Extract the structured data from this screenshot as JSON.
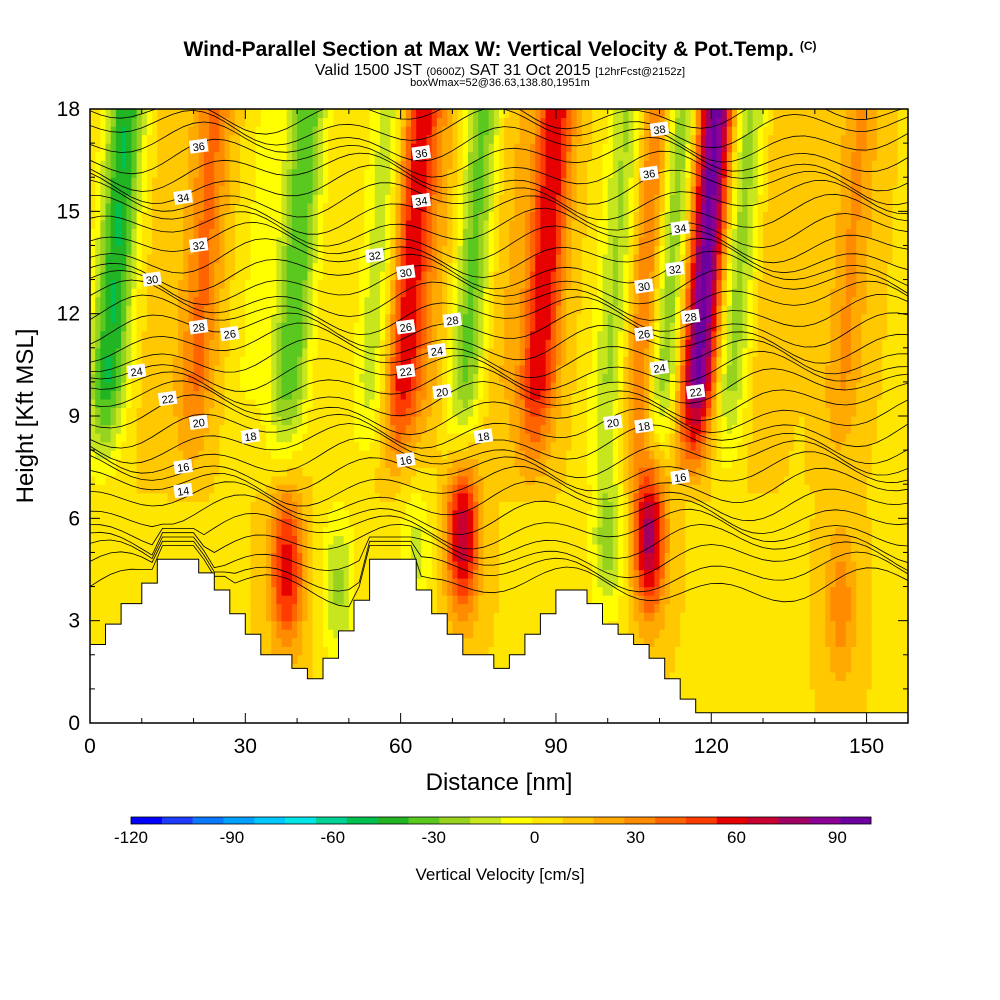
{
  "chart_data": {
    "type": "heatmap",
    "title": "Wind-Parallel Section at Max W: Vertical Velocity & Pot.Temp.",
    "title_mark": "(C)",
    "subtitle_main": "Valid 1500 JST",
    "subtitle_utc": "(0600Z)",
    "subtitle_date": "SAT 31 Oct 2015",
    "subtitle_fcst": "[12hrFcst@2152z]",
    "subtitle2": "boxWmax=52@36.63,138.80,1951m",
    "xlabel": "Distance [nm]",
    "ylabel": "Height [Kft MSL]",
    "xlim": [
      0,
      158
    ],
    "ylim": [
      0,
      18
    ],
    "x_ticks": [
      0,
      30,
      60,
      90,
      120,
      150
    ],
    "y_ticks": [
      0,
      3,
      6,
      9,
      12,
      15,
      18
    ],
    "colorbar": {
      "label": "Vertical Velocity [cm/s]",
      "ticks": [
        -120,
        -90,
        -60,
        -30,
        0,
        30,
        60,
        90
      ],
      "range": [
        -120,
        100
      ],
      "colors": [
        "#0000ff",
        "#1e3cff",
        "#0a78ff",
        "#00a0ff",
        "#00c8ff",
        "#00e6e6",
        "#00d296",
        "#00c050",
        "#22b422",
        "#5ac81e",
        "#96d21e",
        "#c8e61e",
        "#ffff00",
        "#ffe600",
        "#ffc800",
        "#ffaa00",
        "#ff8c00",
        "#ff6400",
        "#ff3c00",
        "#e60000",
        "#c80032",
        "#a00064",
        "#8c0096",
        "#6e00a0"
      ]
    },
    "updraft_bands": [
      {
        "x": 3,
        "w": -55
      },
      {
        "x": 12,
        "w": 5
      },
      {
        "x": 20,
        "w": 30
      },
      {
        "x": 30,
        "w": -10
      },
      {
        "x": 38,
        "w": -45
      },
      {
        "x": 47,
        "w": 0
      },
      {
        "x": 54,
        "w": -25
      },
      {
        "x": 60,
        "w": 55
      },
      {
        "x": 66,
        "w": 10
      },
      {
        "x": 72,
        "w": -40
      },
      {
        "x": 78,
        "w": 10
      },
      {
        "x": 86,
        "w": 55
      },
      {
        "x": 94,
        "w": 0
      },
      {
        "x": 100,
        "w": -30
      },
      {
        "x": 106,
        "w": 40
      },
      {
        "x": 110,
        "w": -45
      },
      {
        "x": 117,
        "w": 90
      },
      {
        "x": 123,
        "w": -35
      },
      {
        "x": 130,
        "w": 10
      },
      {
        "x": 145,
        "w": 20
      }
    ],
    "low_level_cells": [
      {
        "x": 38,
        "y": 4.5,
        "w": 55
      },
      {
        "x": 72,
        "y": 5.5,
        "w": 65
      },
      {
        "x": 108,
        "y": 5.5,
        "w": 70
      },
      {
        "x": 48,
        "y": 4.0,
        "w": -30
      },
      {
        "x": 63,
        "y": 5.0,
        "w": -20
      },
      {
        "x": 100,
        "y": 5.5,
        "w": -35
      },
      {
        "x": 145,
        "y": 3.5,
        "w": 25
      }
    ],
    "terrain": [
      [
        0,
        2.3
      ],
      [
        3,
        2.3
      ],
      [
        3,
        2.9
      ],
      [
        6,
        2.9
      ],
      [
        6,
        3.5
      ],
      [
        10,
        3.5
      ],
      [
        10,
        4.1
      ],
      [
        13,
        4.1
      ],
      [
        13,
        4.8
      ],
      [
        21,
        4.8
      ],
      [
        21,
        4.4
      ],
      [
        24,
        4.4
      ],
      [
        24,
        3.9
      ],
      [
        27,
        3.9
      ],
      [
        27,
        3.2
      ],
      [
        30,
        3.2
      ],
      [
        30,
        2.6
      ],
      [
        33,
        2.6
      ],
      [
        33,
        2.0
      ],
      [
        39,
        2.0
      ],
      [
        39,
        1.6
      ],
      [
        42,
        1.6
      ],
      [
        42,
        1.3
      ],
      [
        45,
        1.3
      ],
      [
        45,
        1.9
      ],
      [
        48,
        1.9
      ],
      [
        48,
        2.7
      ],
      [
        51,
        2.7
      ],
      [
        51,
        3.6
      ],
      [
        54,
        3.6
      ],
      [
        54,
        4.8
      ],
      [
        63,
        4.8
      ],
      [
        63,
        3.9
      ],
      [
        66,
        3.9
      ],
      [
        66,
        3.2
      ],
      [
        69,
        3.2
      ],
      [
        69,
        2.6
      ],
      [
        72,
        2.6
      ],
      [
        72,
        2.0
      ],
      [
        78,
        2.0
      ],
      [
        78,
        1.6
      ],
      [
        81,
        1.6
      ],
      [
        81,
        2.0
      ],
      [
        84,
        2.0
      ],
      [
        84,
        2.6
      ],
      [
        87,
        2.6
      ],
      [
        87,
        3.2
      ],
      [
        90,
        3.2
      ],
      [
        90,
        3.9
      ],
      [
        96,
        3.9
      ],
      [
        96,
        3.5
      ],
      [
        99,
        3.5
      ],
      [
        99,
        2.9
      ],
      [
        102,
        2.9
      ],
      [
        102,
        2.6
      ],
      [
        105,
        2.6
      ],
      [
        105,
        2.3
      ],
      [
        108,
        2.3
      ],
      [
        108,
        1.9
      ],
      [
        111,
        1.9
      ],
      [
        111,
        1.3
      ],
      [
        114,
        1.3
      ],
      [
        114,
        0.7
      ],
      [
        117,
        0.7
      ],
      [
        117,
        0.3
      ],
      [
        158,
        0.3
      ]
    ],
    "theta_labels": [
      {
        "x": 21,
        "y": 16.9,
        "text": "36"
      },
      {
        "x": 64,
        "y": 16.7,
        "text": "36"
      },
      {
        "x": 108,
        "y": 16.1,
        "text": "36"
      },
      {
        "x": 110,
        "y": 17.4,
        "text": "38"
      },
      {
        "x": 18,
        "y": 15.4,
        "text": "34"
      },
      {
        "x": 64,
        "y": 15.3,
        "text": "34"
      },
      {
        "x": 114,
        "y": 14.5,
        "text": "34"
      },
      {
        "x": 21,
        "y": 14.0,
        "text": "32"
      },
      {
        "x": 55,
        "y": 13.7,
        "text": "32"
      },
      {
        "x": 113,
        "y": 13.3,
        "text": "32"
      },
      {
        "x": 12,
        "y": 13.0,
        "text": "30"
      },
      {
        "x": 61,
        "y": 13.2,
        "text": "30"
      },
      {
        "x": 107,
        "y": 12.8,
        "text": "30"
      },
      {
        "x": 21,
        "y": 11.6,
        "text": "28"
      },
      {
        "x": 70,
        "y": 11.8,
        "text": "28"
      },
      {
        "x": 116,
        "y": 11.9,
        "text": "28"
      },
      {
        "x": 27,
        "y": 11.4,
        "text": "26"
      },
      {
        "x": 61,
        "y": 11.6,
        "text": "26"
      },
      {
        "x": 107,
        "y": 11.4,
        "text": "26"
      },
      {
        "x": 9,
        "y": 10.3,
        "text": "24"
      },
      {
        "x": 67,
        "y": 10.9,
        "text": "24"
      },
      {
        "x": 110,
        "y": 10.4,
        "text": "24"
      },
      {
        "x": 15,
        "y": 9.5,
        "text": "22"
      },
      {
        "x": 61,
        "y": 10.3,
        "text": "22"
      },
      {
        "x": 117,
        "y": 9.7,
        "text": "22"
      },
      {
        "x": 21,
        "y": 8.8,
        "text": "20"
      },
      {
        "x": 68,
        "y": 9.7,
        "text": "20"
      },
      {
        "x": 101,
        "y": 8.8,
        "text": "20"
      },
      {
        "x": 31,
        "y": 8.4,
        "text": "18"
      },
      {
        "x": 76,
        "y": 8.4,
        "text": "18"
      },
      {
        "x": 107,
        "y": 8.7,
        "text": "18"
      },
      {
        "x": 18,
        "y": 7.5,
        "text": "16"
      },
      {
        "x": 61,
        "y": 7.7,
        "text": "16"
      },
      {
        "x": 114,
        "y": 7.2,
        "text": "16"
      },
      {
        "x": 18,
        "y": 6.8,
        "text": "14"
      }
    ]
  }
}
